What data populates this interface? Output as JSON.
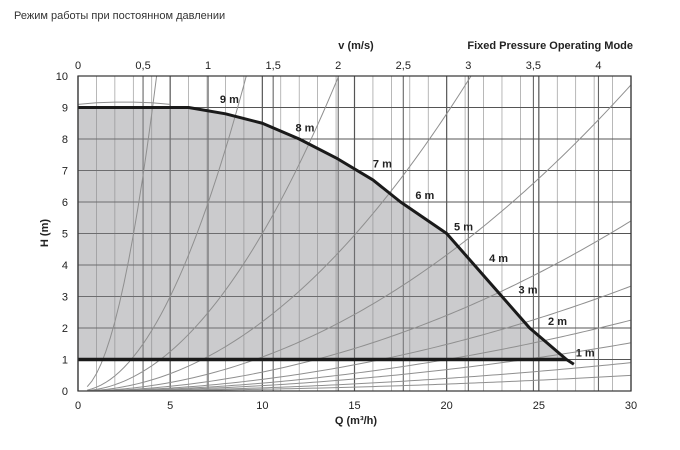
{
  "caption": "Режим работы при постоянном давлении",
  "chart_data": {
    "type": "line",
    "title": "Fixed Pressure Operating Mode",
    "xlabel": "Q (m³/h)",
    "ylabel": "H (m)",
    "x2label": "v (m/s)",
    "xlim": [
      0,
      30
    ],
    "ylim": [
      0,
      10
    ],
    "x2lim": [
      0,
      4.25
    ],
    "xticks": [
      0,
      5,
      10,
      15,
      20,
      25,
      30
    ],
    "yticks": [
      0,
      1,
      2,
      3,
      4,
      5,
      6,
      7,
      8,
      9,
      10
    ],
    "x2ticks": [
      {
        "value": 0,
        "label": "0"
      },
      {
        "value": 0.5,
        "label": "0,5"
      },
      {
        "value": 1,
        "label": "1"
      },
      {
        "value": 1.5,
        "label": "1,5"
      },
      {
        "value": 2,
        "label": "2"
      },
      {
        "value": 2.5,
        "label": "2,5"
      },
      {
        "value": 3,
        "label": "3"
      },
      {
        "value": 3.5,
        "label": "3,5"
      },
      {
        "value": 4,
        "label": "4"
      }
    ],
    "grid": true,
    "envelope": {
      "x": [
        0,
        6,
        8,
        10,
        12,
        14,
        16,
        17.5,
        20,
        21.5,
        23,
        24.5,
        26.5
      ],
      "y": [
        9,
        9,
        8.8,
        8.5,
        8.0,
        7.4,
        6.7,
        6.0,
        5.0,
        4.0,
        3.0,
        2.0,
        1.0
      ]
    },
    "min_line": {
      "x": [
        0,
        26.5
      ],
      "y": [
        1,
        1
      ]
    },
    "levels": [
      {
        "label": "9 m",
        "x": 7.7,
        "y": 9.05
      },
      {
        "label": "8 m",
        "x": 11.8,
        "y": 8.15
      },
      {
        "label": "7 m",
        "x": 16.0,
        "y": 7.0
      },
      {
        "label": "6 m",
        "x": 18.3,
        "y": 6.0
      },
      {
        "label": "5 m",
        "x": 20.4,
        "y": 5.0
      },
      {
        "label": "4 m",
        "x": 22.3,
        "y": 4.0
      },
      {
        "label": "3 m",
        "x": 23.9,
        "y": 3.0
      },
      {
        "label": "2 m",
        "x": 25.5,
        "y": 2.0
      },
      {
        "label": "1 m",
        "x": 27.0,
        "y": 1.0
      }
    ],
    "system_curve_coefficients": [
      0.55,
      0.12,
      0.05,
      0.022,
      0.0108,
      0.006,
      0.0037,
      0.0025,
      0.0017,
      0.001,
      0.00055
    ],
    "inner_dome": {
      "x": [
        0,
        1,
        2,
        3,
        4,
        5
      ],
      "y": [
        9.1,
        9.15,
        9.17,
        9.17,
        9.15,
        9.1
      ]
    }
  }
}
